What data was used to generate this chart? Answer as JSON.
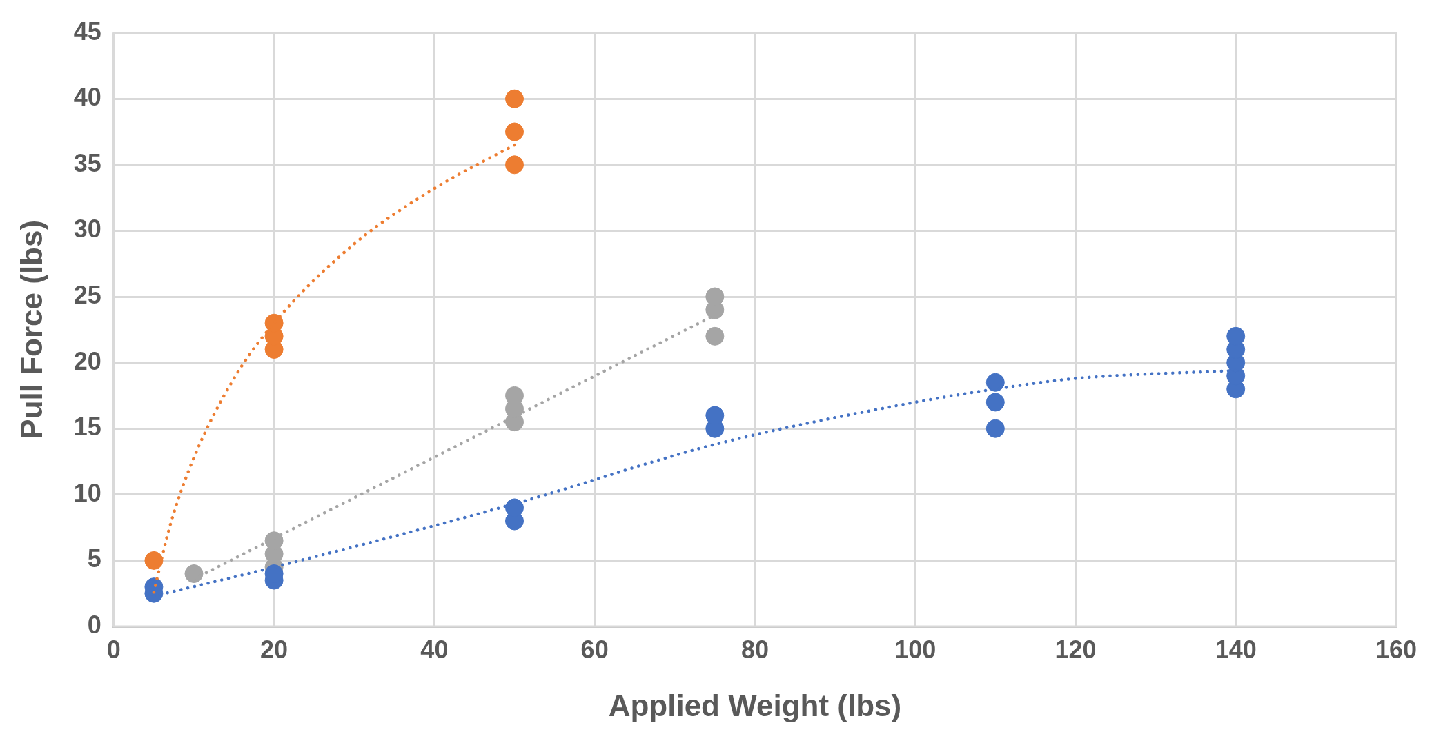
{
  "chart_data": {
    "type": "scatter",
    "xlabel": "Applied Weight (lbs)",
    "ylabel": "Pull Force (lbs)",
    "xlim": [
      0,
      160
    ],
    "xticks": [
      0,
      20,
      40,
      60,
      80,
      100,
      120,
      140,
      160
    ],
    "ylim": [
      0,
      45
    ],
    "yticks": [
      0,
      5,
      10,
      15,
      20,
      25,
      30,
      35,
      40,
      45
    ],
    "grid": true,
    "legend": false,
    "marker": "circle",
    "series": [
      {
        "color": "#4472c4",
        "x": [
          5,
          5,
          20,
          20,
          50,
          50,
          75,
          75,
          110,
          110,
          110,
          140,
          140,
          140,
          140,
          140
        ],
        "values": [
          2.5,
          3,
          3.5,
          4,
          8,
          9,
          15,
          16,
          15,
          17,
          18.5,
          18,
          19,
          20,
          21,
          22
        ]
      },
      {
        "color": "#ed7d31",
        "x": [
          5,
          20,
          20,
          20,
          50,
          50,
          50
        ],
        "values": [
          5,
          21,
          22,
          23,
          35,
          37.5,
          40
        ]
      },
      {
        "color": "#a5a5a5",
        "x": [
          10,
          20,
          20,
          20,
          50,
          50,
          50,
          75,
          75,
          75
        ],
        "values": [
          4,
          4.5,
          5.5,
          6.5,
          15.5,
          16.5,
          17.5,
          22,
          24,
          25
        ]
      },
      {
        "type": "line",
        "line_style": "dotted",
        "marker": "none",
        "color": "#4472c4",
        "x": [
          5,
          20,
          50,
          75,
          100,
          110,
          120,
          140
        ],
        "values": [
          2.3,
          4.5,
          9.3,
          13.8,
          17,
          18,
          18.8,
          19.4
        ]
      },
      {
        "type": "line",
        "line_style": "dotted",
        "marker": "none",
        "color": "#ed7d31",
        "x": [
          5,
          7,
          10,
          15,
          20,
          30,
          40,
          50
        ],
        "values": [
          2.6,
          7.6,
          12.8,
          18.8,
          23,
          29,
          33.2,
          36.5
        ]
      },
      {
        "type": "line",
        "line_style": "dotted",
        "marker": "none",
        "color": "#a5a5a5",
        "x": [
          10,
          75
        ],
        "values": [
          3.6,
          23.6
        ]
      }
    ]
  }
}
